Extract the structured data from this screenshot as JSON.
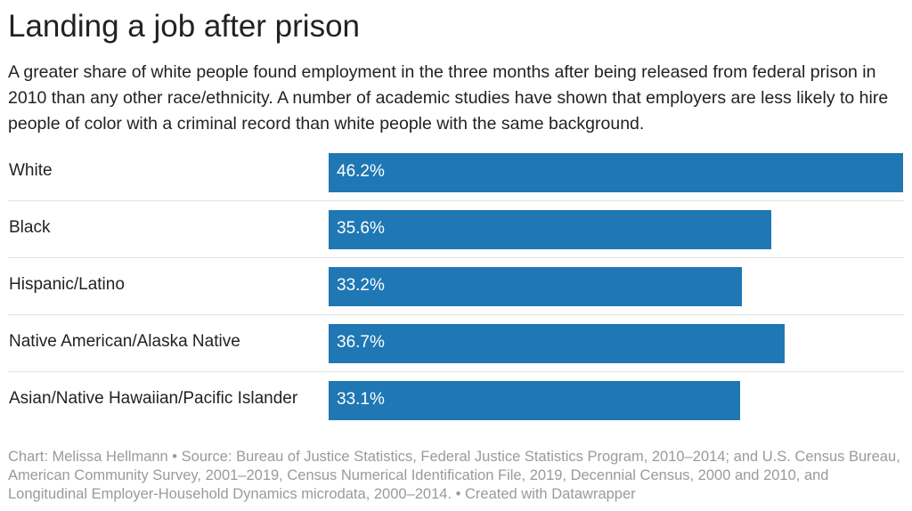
{
  "title": "Landing a job after prison",
  "description": "A greater share of white people found employment in the three months after being released from federal prison in 2010 than any other race/ethnicity. A number of academic studies have shown that employers are less likely to hire people of color with a criminal record than white people with the same background.",
  "footer": "Chart: Melissa Hellmann • Source: Bureau of Justice Statistics, Federal Justice Statistics Program, 2010–2014; and U.S. Census Bureau, American Community Survey, 2001–2019, Census Numerical Identification File, 2019, Decennial Census, 2000 and 2010, and Longitudinal Employer-Household Dynamics microdata, 2000–2014. • Created with Datawrapper",
  "colors": {
    "bar": "#1f77b4",
    "divider": "#e2e2e2",
    "footer_text": "#9a9a9a"
  },
  "chart_data": {
    "type": "bar",
    "orientation": "horizontal",
    "categories": [
      "White",
      "Black",
      "Hispanic/Latino",
      "Native American/Alaska Native",
      "Asian/Native Hawaiian/Pacific Islander"
    ],
    "values": [
      46.2,
      35.6,
      33.2,
      36.7,
      33.1
    ],
    "value_labels": [
      "46.2%",
      "35.6%",
      "33.2%",
      "36.7%",
      "33.1%"
    ],
    "unit": "%",
    "xlim": [
      0,
      46.2
    ],
    "grid": false,
    "legend": "none"
  }
}
